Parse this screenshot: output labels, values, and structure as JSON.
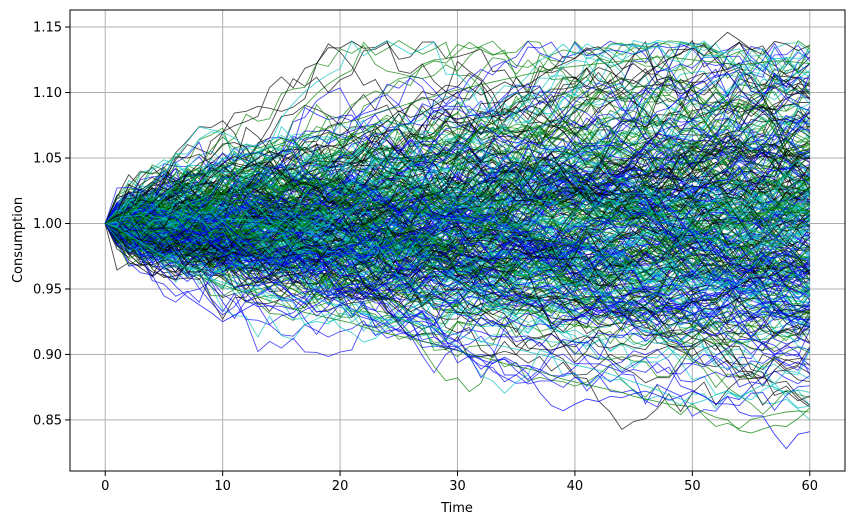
{
  "chart_data": {
    "type": "line",
    "title": "",
    "xlabel": "Time",
    "ylabel": "Consumption",
    "xlim": [
      -3,
      63
    ],
    "ylim": [
      0.811,
      1.163
    ],
    "x_ticks": [
      0,
      10,
      20,
      30,
      40,
      50,
      60
    ],
    "x_tick_labels": [
      "0",
      "10",
      "20",
      "30",
      "40",
      "50",
      "60"
    ],
    "y_ticks": [
      0.85,
      0.9,
      0.95,
      1.0,
      1.05,
      1.1,
      1.15
    ],
    "y_tick_labels": [
      "0.85",
      "0.90",
      "0.95",
      "1.00",
      "1.05",
      "1.10",
      "1.15"
    ],
    "grid": true,
    "legend": "none",
    "x": [
      0,
      1,
      2,
      3,
      4,
      5,
      6,
      7,
      8,
      9,
      10,
      11,
      12,
      13,
      14,
      15,
      16,
      17,
      18,
      19,
      20,
      21,
      22,
      23,
      24,
      25,
      26,
      27,
      28,
      29,
      30,
      31,
      32,
      33,
      34,
      35,
      36,
      37,
      38,
      39,
      40,
      41,
      42,
      43,
      44,
      45,
      46,
      47,
      48,
      49,
      50,
      51,
      52,
      53,
      54,
      55,
      56,
      57,
      58,
      59,
      60
    ],
    "start_value": 1.0,
    "n_series_shown": 400,
    "series_colors": [
      "#000000",
      "#008000",
      "#0000ff",
      "#00bfbf"
    ],
    "highlighted_series": [
      {
        "color": "#000000",
        "values": [
          1.0,
          1.006,
          1.011,
          1.018,
          1.016,
          1.024,
          1.03,
          1.033,
          1.038,
          1.035,
          1.042,
          1.046,
          1.044,
          1.05,
          1.055,
          1.052,
          1.048,
          1.054,
          1.056,
          1.06,
          1.057,
          1.062,
          1.068,
          1.072,
          1.078,
          1.086,
          1.081,
          1.084,
          1.09,
          1.095,
          1.1,
          1.104,
          1.098,
          1.103,
          1.108,
          1.104,
          1.106,
          1.112,
          1.118,
          1.122,
          1.126,
          1.133,
          1.135,
          1.128,
          1.118,
          1.122,
          1.115,
          1.12,
          1.126,
          1.13,
          1.134,
          1.128,
          1.138,
          1.146,
          1.14,
          1.133,
          1.129,
          1.139,
          1.137,
          1.132,
          1.136
        ]
      },
      {
        "color": "#0000ff",
        "values": [
          1.0,
          0.993,
          0.984,
          0.978,
          0.97,
          0.962,
          0.952,
          0.944,
          0.938,
          0.932,
          0.925,
          0.93,
          0.935,
          0.94,
          0.937,
          0.933,
          0.928,
          0.934,
          0.938,
          0.944,
          0.94,
          0.935,
          0.93,
          0.926,
          0.922,
          0.918,
          0.914,
          0.91,
          0.908,
          0.906,
          0.903,
          0.9,
          0.896,
          0.893,
          0.898,
          0.893,
          0.885,
          0.871,
          0.861,
          0.857,
          0.862,
          0.866,
          0.864,
          0.868,
          0.867,
          0.87,
          0.872,
          0.869,
          0.865,
          0.868,
          0.872,
          0.868,
          0.862,
          0.868,
          0.856,
          0.853,
          0.853,
          0.839,
          0.828,
          0.839,
          0.841
        ]
      },
      {
        "color": "#00bfbf",
        "values": [
          1.0,
          0.997,
          0.991,
          0.986,
          0.98,
          0.975,
          0.971,
          0.966,
          0.962,
          0.958,
          0.955,
          0.952,
          0.948,
          0.951,
          0.946,
          0.942,
          0.944,
          0.94,
          0.943,
          0.939,
          0.936,
          0.934,
          0.931,
          0.929,
          0.926,
          0.928,
          0.925,
          0.922,
          0.92,
          0.918,
          0.915,
          0.912,
          0.91,
          0.908,
          0.906,
          0.904,
          0.902,
          0.9,
          0.898,
          0.895,
          0.892,
          0.89,
          0.888,
          0.885,
          0.882,
          0.879,
          0.876,
          0.873,
          0.869,
          0.866,
          0.862,
          0.865,
          0.869,
          0.872,
          0.868,
          0.872,
          0.877,
          0.875,
          0.87,
          0.873,
          0.871
        ]
      },
      {
        "color": "#008000",
        "values": [
          1.0,
          0.996,
          0.99,
          0.984,
          0.978,
          0.974,
          0.97,
          0.965,
          0.96,
          0.956,
          0.953,
          0.95,
          0.947,
          0.944,
          0.941,
          0.938,
          0.935,
          0.932,
          0.93,
          0.928,
          0.926,
          0.924,
          0.921,
          0.918,
          0.916,
          0.914,
          0.912,
          0.91,
          0.908,
          0.905,
          0.903,
          0.9,
          0.898,
          0.896,
          0.893,
          0.891,
          0.889,
          0.887,
          0.884,
          0.881,
          0.879,
          0.877,
          0.875,
          0.873,
          0.871,
          0.868,
          0.866,
          0.864,
          0.862,
          0.861,
          0.86,
          0.856,
          0.852,
          0.85,
          0.842,
          0.84,
          0.843,
          0.846,
          0.845,
          0.851,
          0.859
        ]
      },
      {
        "color": "#008000",
        "values": [
          1.0,
          1.004,
          1.009,
          1.013,
          1.018,
          1.022,
          1.027,
          1.031,
          1.036,
          1.04,
          1.044,
          1.047,
          1.051,
          1.054,
          1.058,
          1.061,
          1.064,
          1.067,
          1.07,
          1.073,
          1.076,
          1.078,
          1.081,
          1.084,
          1.087,
          1.089,
          1.092,
          1.095,
          1.097,
          1.1,
          1.102,
          1.104,
          1.106,
          1.108,
          1.11,
          1.112,
          1.114,
          1.116,
          1.118,
          1.119,
          1.12,
          1.121,
          1.122,
          1.123,
          1.124,
          1.125,
          1.126,
          1.127,
          1.127,
          1.126,
          1.125,
          1.124,
          1.123,
          1.122,
          1.121,
          1.122,
          1.123,
          1.124,
          1.124,
          1.123,
          1.122
        ]
      }
    ]
  }
}
